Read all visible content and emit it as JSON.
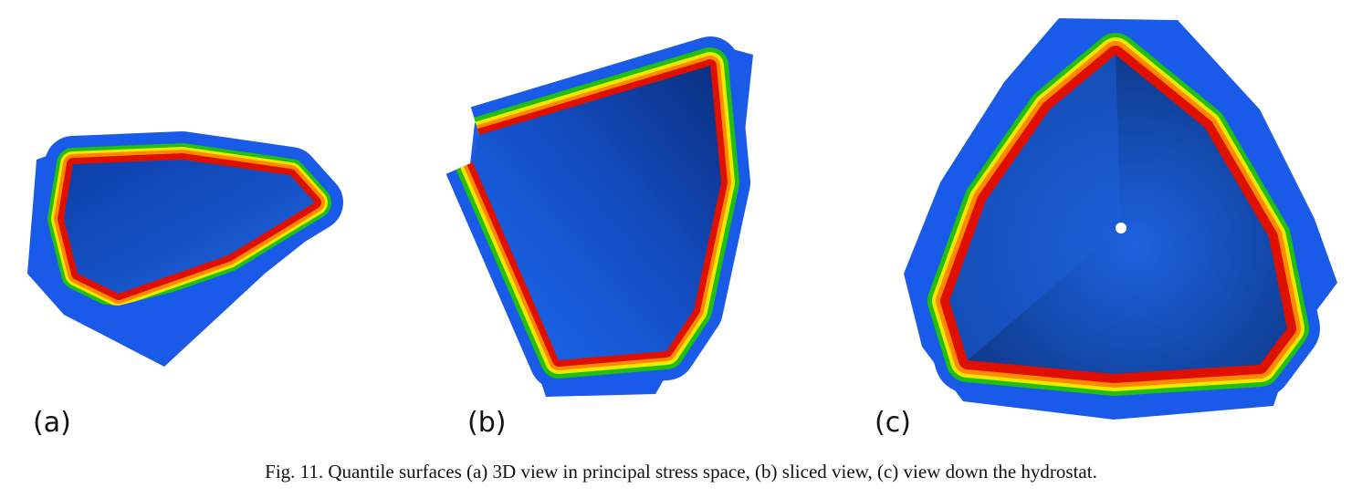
{
  "figure": {
    "panels": [
      {
        "label": "(a)"
      },
      {
        "label": "(b)"
      },
      {
        "label": "(c)"
      }
    ],
    "caption": "Fig. 11.  Quantile surfaces (a) 3D view in principal stress space, (b) sliced view, (c) view down the hydrostat.",
    "colors": {
      "outer": "#1a5ae8",
      "green": "#20c010",
      "yellow": "#f0e800",
      "orange": "#ff8a00",
      "red": "#e01000",
      "inner": "#0e3a9a"
    }
  }
}
